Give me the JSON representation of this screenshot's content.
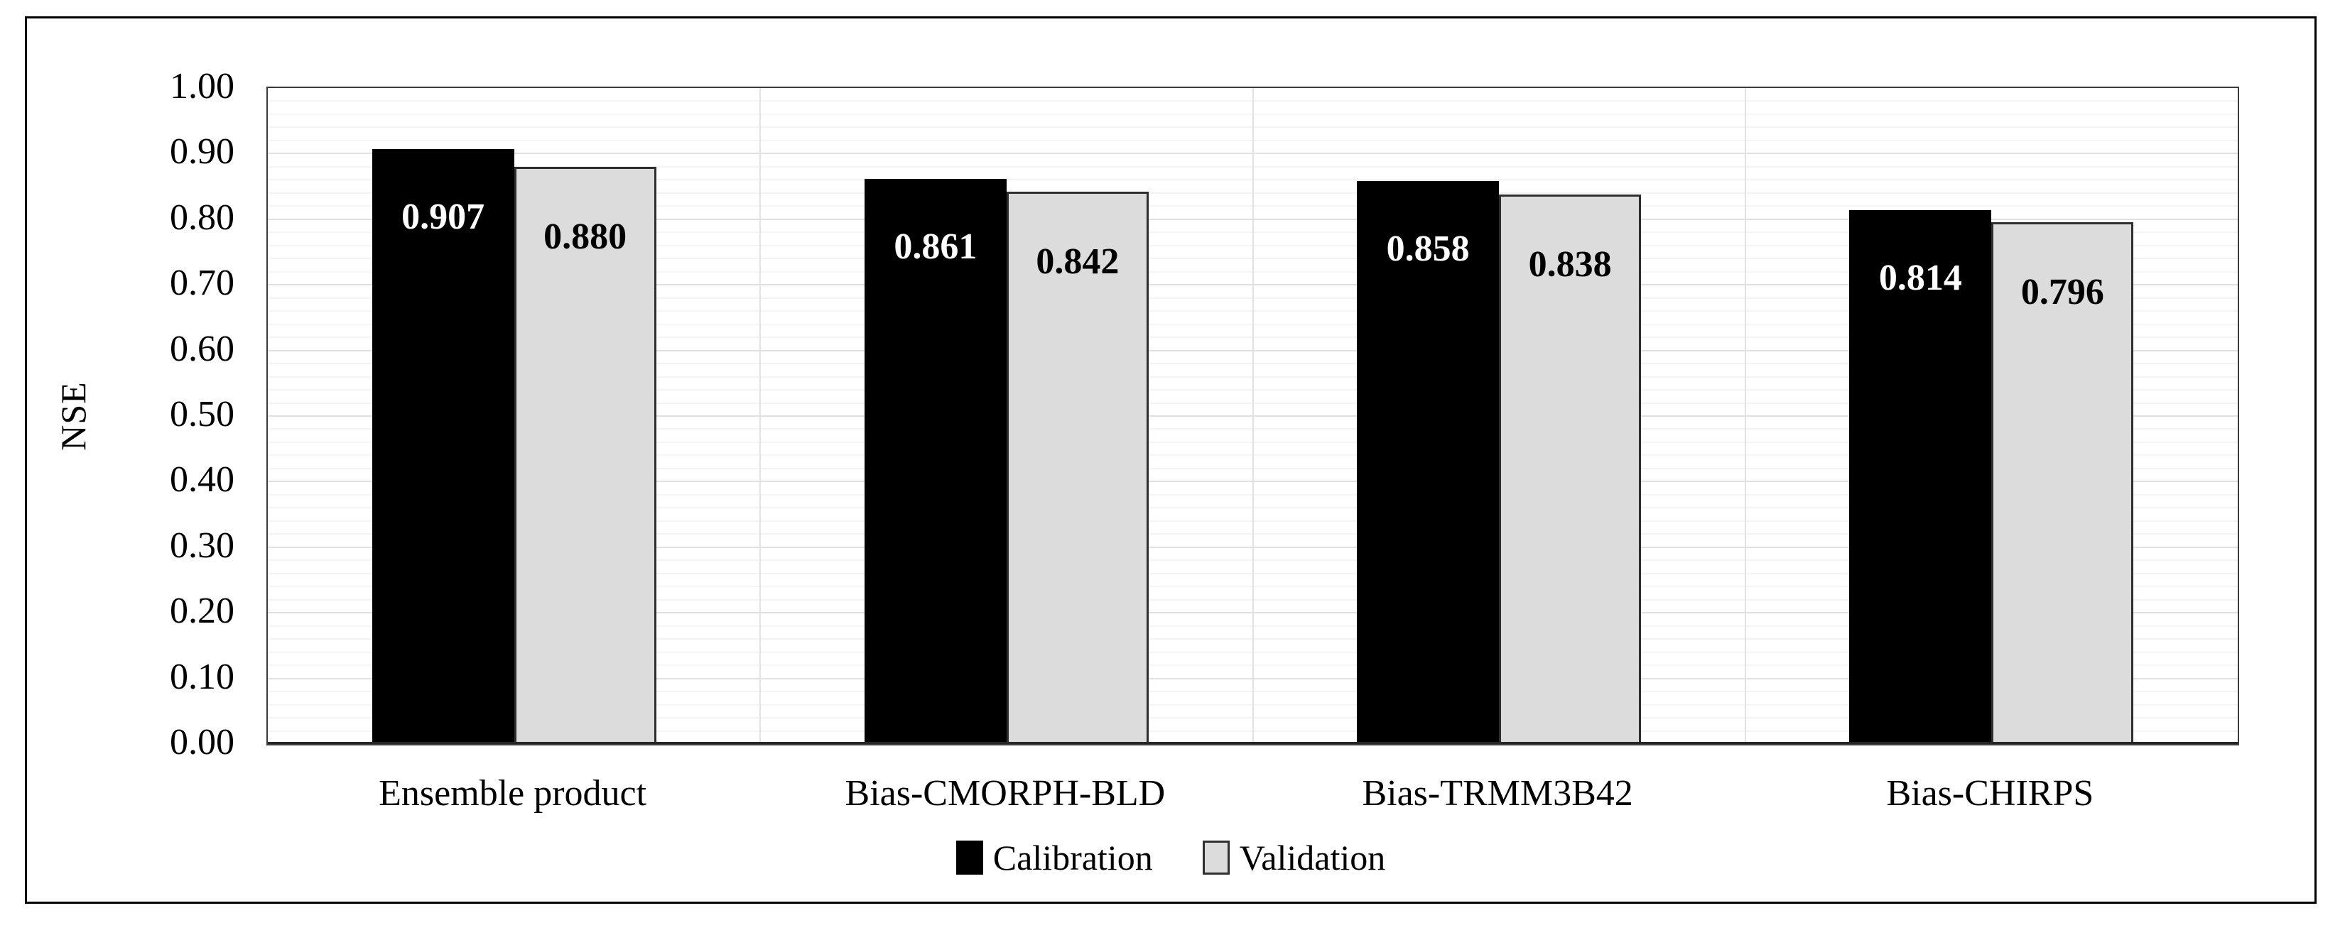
{
  "chart_data": {
    "type": "bar",
    "title": "",
    "xlabel": "",
    "ylabel": "NSE",
    "categories": [
      "Ensemble product",
      "Bias-CMORPH-BLD",
      "Bias-TRMM3B42",
      "Bias-CHIRPS"
    ],
    "series": [
      {
        "name": "Calibration",
        "values": [
          0.907,
          0.861,
          0.858,
          0.814
        ],
        "labels": [
          "0.907",
          "0.861",
          "0.858",
          "0.814"
        ],
        "fill": "#000000",
        "border": "#000000",
        "label_color": "#ffffff"
      },
      {
        "name": "Validation",
        "values": [
          0.88,
          0.842,
          0.838,
          0.796
        ],
        "labels": [
          "0.880",
          "0.842",
          "0.838",
          "0.796"
        ],
        "fill": "#dcdcdc",
        "border": "#2e2e2e",
        "label_color": "#000000"
      }
    ],
    "ylim": [
      0,
      1
    ],
    "ytick_step": 0.1,
    "minor_tick_step": 0.02,
    "ytick_labels": [
      "0.00",
      "0.10",
      "0.20",
      "0.30",
      "0.40",
      "0.50",
      "0.60",
      "0.70",
      "0.80",
      "0.90",
      "1.00"
    ],
    "grid": "horizontal major+minor, vertical category separators",
    "legend_position": "bottom-center",
    "colors": {
      "background": "#ffffff",
      "frame_border": "#000000",
      "plot_border": "#3b3b3b",
      "axis_line": "#262626",
      "major_grid": "#e0e0e0",
      "minor_grid": "#f4f4f4",
      "vertical_grid": "#e2e2e2"
    }
  }
}
